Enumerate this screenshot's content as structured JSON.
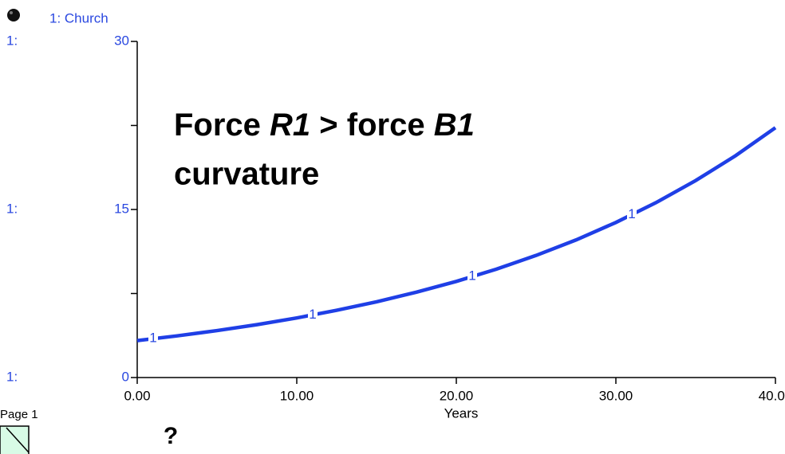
{
  "chart_data": {
    "type": "line",
    "legend_label": "1: Church",
    "axis_prefix": "1:",
    "marker": "1",
    "xlabel": "Years",
    "page_label": "Page 1",
    "help_label": "?",
    "annotation": {
      "line1": [
        "Force ",
        "R1",
        " > force ",
        "B1"
      ],
      "line2": "curvature"
    },
    "x": [
      0,
      2.5,
      5,
      7.5,
      10,
      12.5,
      15,
      17.5,
      20,
      22.5,
      25,
      27.5,
      30,
      32.5,
      35,
      37.5,
      40
    ],
    "series": [
      {
        "name": "Church",
        "color": "#1f3fe6",
        "values": [
          3.3,
          3.72,
          4.19,
          4.72,
          5.32,
          6.0,
          6.76,
          7.62,
          8.58,
          9.67,
          10.9,
          12.28,
          13.84,
          15.6,
          17.58,
          19.8,
          22.3
        ]
      }
    ],
    "marker_x": [
      1,
      11,
      21,
      31
    ],
    "xlim": [
      0,
      40
    ],
    "xticks": [
      {
        "value": 0,
        "label": "0.00"
      },
      {
        "value": 10,
        "label": "10.00"
      },
      {
        "value": 20,
        "label": "20.00"
      },
      {
        "value": 30,
        "label": "30.00"
      },
      {
        "value": 40,
        "label": "40.00"
      }
    ],
    "ylim": [
      0,
      30
    ],
    "yticks": [
      0,
      15,
      30
    ],
    "yminor_ticks": [
      7.5,
      22.5
    ]
  }
}
